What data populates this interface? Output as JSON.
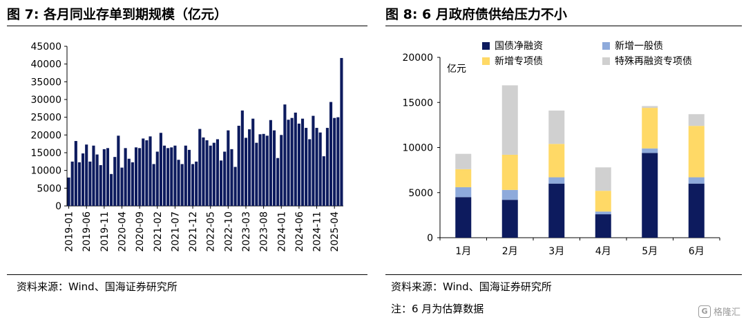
{
  "left": {
    "title": "图 7:  各月同业存单到期规模（亿元）",
    "source": "资料来源：Wind、国海证券研究所"
  },
  "right": {
    "title": "图 8:  6 月政府债供给压力不小",
    "source": "资料来源：Wind、国海证券研究所",
    "note": "注：6 月为估算数据",
    "unit": "亿元"
  },
  "watermark": {
    "text": "格隆汇",
    "logo": "G"
  },
  "colors": {
    "bar_navy": "#0d1b5e",
    "net_financing": "#0d1b5e",
    "general_bond": "#8eaadb",
    "special_bond": "#ffd966",
    "refinancing": "#d0d0d0"
  },
  "chart_data": [
    {
      "type": "bar",
      "title": "各月同业存单到期规模（亿元）",
      "xlabel": "",
      "ylabel": "",
      "ylim": [
        0,
        45000
      ],
      "yticks": [
        0,
        5000,
        10000,
        15000,
        20000,
        25000,
        30000,
        35000,
        40000,
        45000
      ],
      "xtick_labels": [
        "2019-01",
        "2019-06",
        "2019-11",
        "2020-04",
        "2020-09",
        "2021-02",
        "2021-07",
        "2021-12",
        "2022-05",
        "2022-10",
        "2023-03",
        "2023-08",
        "2024-01",
        "2024-06",
        "2024-11",
        "2025-04"
      ],
      "x": [
        "2019-01",
        "2019-02",
        "2019-03",
        "2019-04",
        "2019-05",
        "2019-06",
        "2019-07",
        "2019-08",
        "2019-09",
        "2019-10",
        "2019-11",
        "2019-12",
        "2020-01",
        "2020-02",
        "2020-03",
        "2020-04",
        "2020-05",
        "2020-06",
        "2020-07",
        "2020-08",
        "2020-09",
        "2020-10",
        "2020-11",
        "2020-12",
        "2021-01",
        "2021-02",
        "2021-03",
        "2021-04",
        "2021-05",
        "2021-06",
        "2021-07",
        "2021-08",
        "2021-09",
        "2021-10",
        "2021-11",
        "2021-12",
        "2022-01",
        "2022-02",
        "2022-03",
        "2022-04",
        "2022-05",
        "2022-06",
        "2022-07",
        "2022-08",
        "2022-09",
        "2022-10",
        "2022-11",
        "2022-12",
        "2023-01",
        "2023-02",
        "2023-03",
        "2023-04",
        "2023-05",
        "2023-06",
        "2023-07",
        "2023-08",
        "2023-09",
        "2023-10",
        "2023-11",
        "2023-12",
        "2024-01",
        "2024-02",
        "2024-03",
        "2024-04",
        "2024-05",
        "2024-06",
        "2024-07",
        "2024-08",
        "2024-09",
        "2024-10",
        "2024-11",
        "2024-12",
        "2025-01",
        "2025-02",
        "2025-03",
        "2025-04",
        "2025-05",
        "2025-06"
      ],
      "values": [
        8000,
        12500,
        18300,
        12300,
        14800,
        17300,
        12500,
        17000,
        14500,
        11500,
        16000,
        16300,
        9000,
        13800,
        19800,
        10800,
        16300,
        13300,
        12300,
        16500,
        16300,
        19000,
        18500,
        19600,
        11800,
        15300,
        20600,
        17000,
        16300,
        16500,
        17000,
        13000,
        11800,
        17000,
        15800,
        11800,
        12500,
        21700,
        19300,
        18500,
        17000,
        17800,
        18800,
        12800,
        15300,
        21300,
        16000,
        11000,
        22600,
        26900,
        19200,
        21600,
        24600,
        17800,
        20200,
        20300,
        19800,
        24200,
        21300,
        13500,
        20000,
        28600,
        24300,
        24800,
        26300,
        23200,
        24600,
        22000,
        18800,
        25400,
        22000,
        20700,
        14000,
        22000,
        29300,
        24800,
        25000,
        41700
      ]
    },
    {
      "type": "bar",
      "stacked": true,
      "title": "6 月政府债供给压力不小",
      "ylabel": "亿元",
      "ylim": [
        0,
        20000
      ],
      "yticks": [
        0,
        5000,
        10000,
        15000,
        20000
      ],
      "categories": [
        "1月",
        "2月",
        "3月",
        "4月",
        "5月",
        "6月"
      ],
      "legend_position": "top",
      "series": [
        {
          "name": "国债净融资",
          "values": [
            4500,
            4200,
            6000,
            2600,
            9400,
            6000
          ]
        },
        {
          "name": "新增一般债",
          "values": [
            1100,
            1100,
            700,
            300,
            500,
            700
          ]
        },
        {
          "name": "新增专项债",
          "values": [
            2000,
            3900,
            3700,
            2300,
            4500,
            5700
          ]
        },
        {
          "name": "特殊再融资专项债",
          "values": [
            1700,
            7700,
            3700,
            2600,
            200,
            1300
          ]
        }
      ]
    }
  ]
}
